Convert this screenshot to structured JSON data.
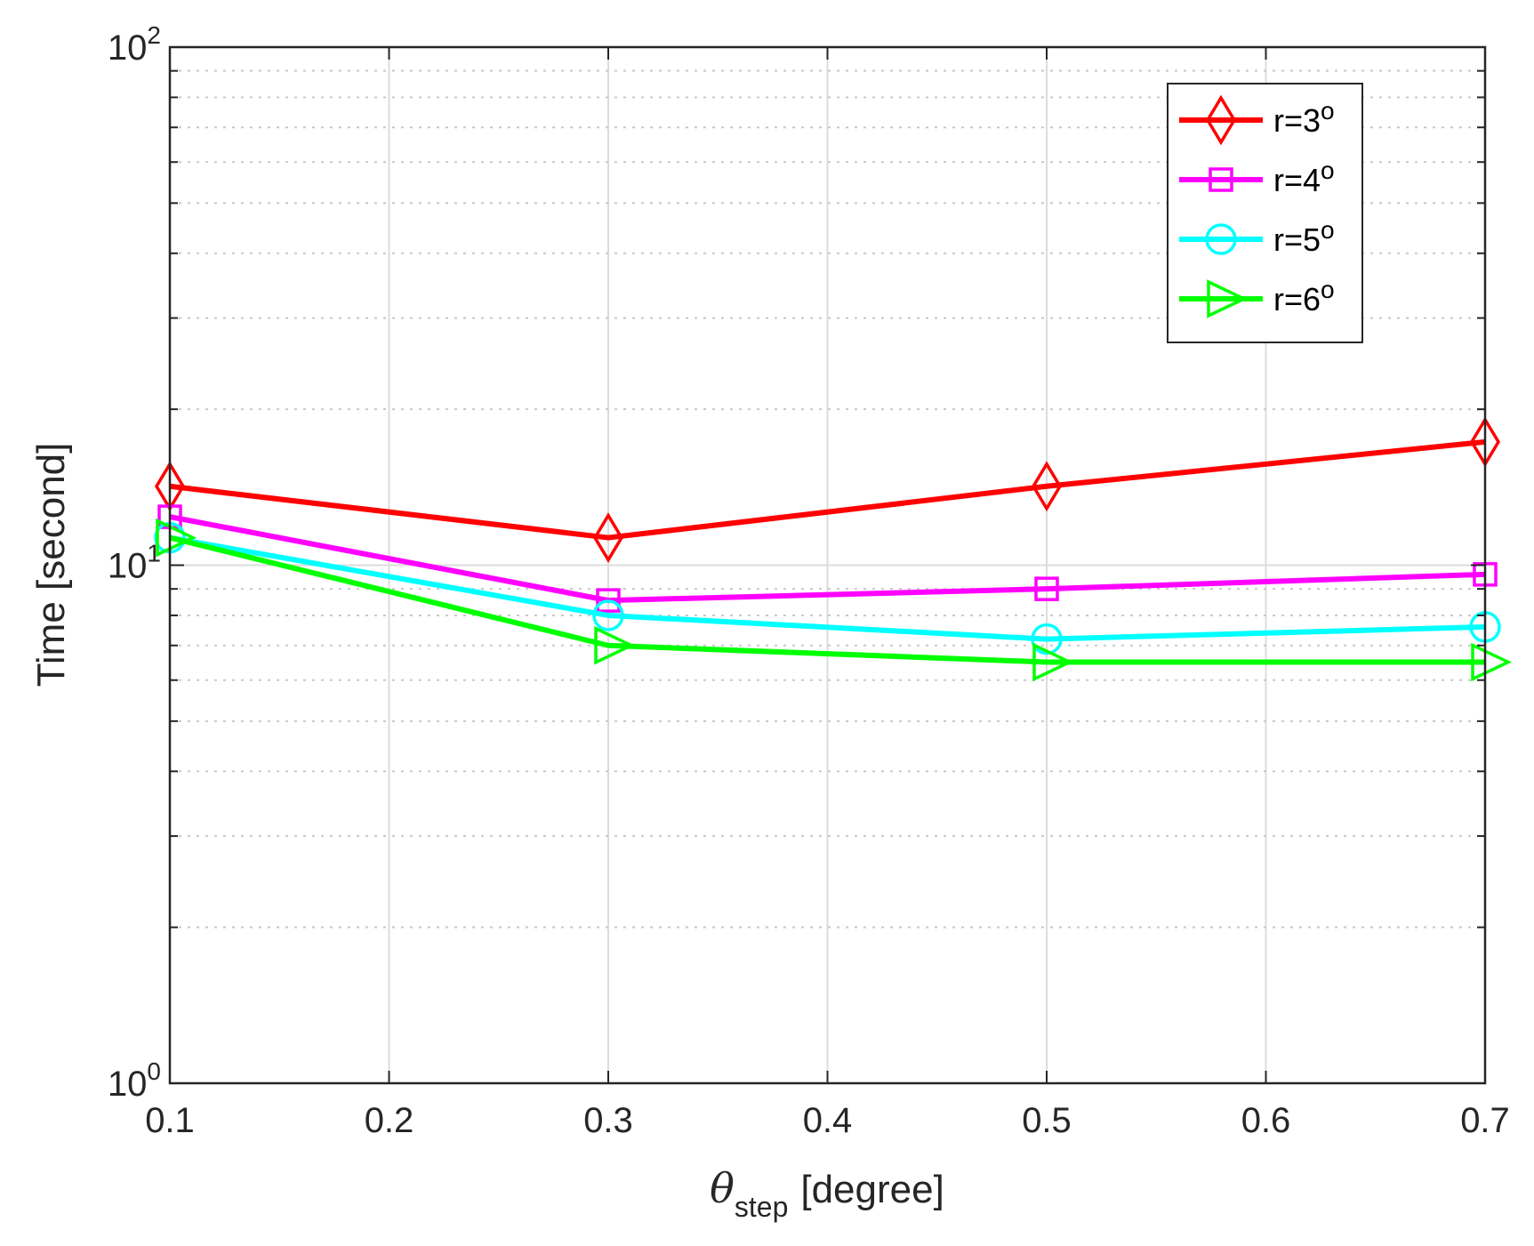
{
  "chart_data": {
    "type": "line",
    "xlabel": {
      "symbol": "θ",
      "subscript": "step",
      "suffix": "[degree]"
    },
    "ylabel": "Time [second]",
    "yscale": "log",
    "xlim": [
      0.1,
      0.7
    ],
    "ylim": [
      1,
      100
    ],
    "x": [
      0.1,
      0.3,
      0.5,
      0.7
    ],
    "x_ticks": [
      "0.1",
      "0.2",
      "0.3",
      "0.4",
      "0.5",
      "0.6",
      "0.7"
    ],
    "y_ticks": [
      {
        "base": "10",
        "exp": "0",
        "value": 1
      },
      {
        "base": "10",
        "exp": "1",
        "value": 10
      },
      {
        "base": "10",
        "exp": "2",
        "value": 100
      }
    ],
    "grid": true,
    "legend_position": "top-right",
    "series": [
      {
        "name": "r=3",
        "name_sup": "o",
        "color": "#ff0000",
        "marker": "diamond",
        "values": [
          14.2,
          11.3,
          14.2,
          17.3
        ]
      },
      {
        "name": "r=4",
        "name_sup": "o",
        "color": "#ff00ff",
        "marker": "square",
        "values": [
          12.4,
          8.55,
          9.0,
          9.6
        ]
      },
      {
        "name": "r=5",
        "name_sup": "o",
        "color": "#00ffff",
        "marker": "circle",
        "values": [
          11.3,
          8.0,
          7.2,
          7.6
        ]
      },
      {
        "name": "r=6",
        "name_sup": "o",
        "color": "#00ff00",
        "marker": "triangle-right",
        "values": [
          11.3,
          7.0,
          6.5,
          6.5
        ]
      }
    ]
  }
}
